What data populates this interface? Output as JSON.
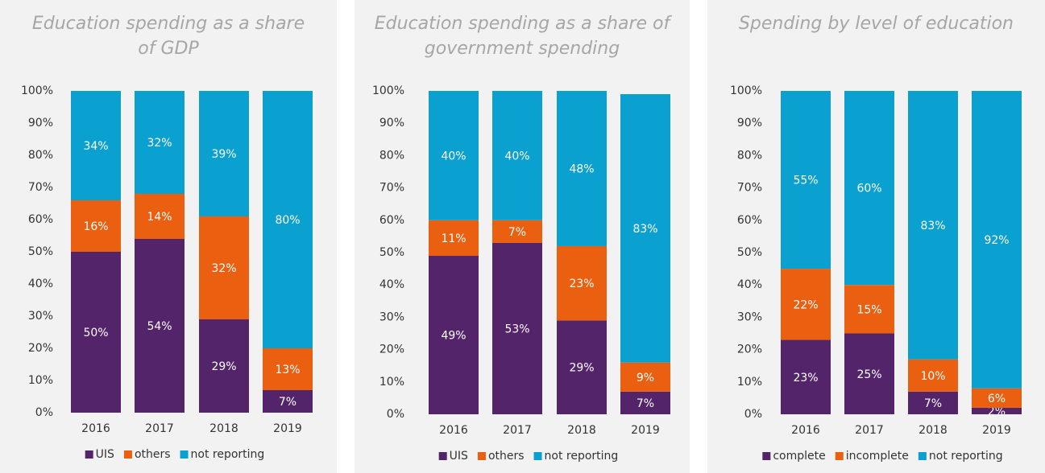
{
  "chart_data": [
    {
      "type": "bar",
      "stacked": true,
      "title": "Education spending as a share of GDP",
      "categories": [
        "2016",
        "2017",
        "2018",
        "2019"
      ],
      "series": [
        {
          "name": "UIS",
          "color": "#54246b",
          "values": [
            50,
            54,
            29,
            7
          ],
          "value_labels": [
            "50%",
            "54%",
            "29%",
            "7%"
          ]
        },
        {
          "name": "others",
          "color": "#ea6010",
          "values": [
            16,
            14,
            32,
            13
          ],
          "value_labels": [
            "16%",
            "14%",
            "32%",
            "13%"
          ]
        },
        {
          "name": "not reporting",
          "color": "#0aa0cf",
          "values": [
            34,
            32,
            39,
            80
          ],
          "value_labels": [
            "34%",
            "32%",
            "39%",
            "80%"
          ]
        }
      ],
      "ylim": [
        0,
        100
      ],
      "yticks": [
        {
          "value": 0,
          "label": "0%"
        },
        {
          "value": 10,
          "label": "10%"
        },
        {
          "value": 20,
          "label": "20%"
        },
        {
          "value": 30,
          "label": "30%"
        },
        {
          "value": 40,
          "label": "40%"
        },
        {
          "value": 50,
          "label": "50%"
        },
        {
          "value": 60,
          "label": "60%"
        },
        {
          "value": 70,
          "label": "70%"
        },
        {
          "value": 80,
          "label": "80%"
        },
        {
          "value": 90,
          "label": "90%"
        },
        {
          "value": 100,
          "label": "100%"
        }
      ],
      "legend": "bottom"
    },
    {
      "type": "bar",
      "stacked": true,
      "title": "Education spending as a share of government spending",
      "categories": [
        "2016",
        "2017",
        "2018",
        "2019"
      ],
      "series": [
        {
          "name": "UIS",
          "color": "#54246b",
          "values": [
            49,
            53,
            29,
            7
          ],
          "value_labels": [
            "49%",
            "53%",
            "29%",
            "7%"
          ]
        },
        {
          "name": "others",
          "color": "#ea6010",
          "values": [
            11,
            7,
            23,
            9
          ],
          "value_labels": [
            "11%",
            "7%",
            "23%",
            "9%"
          ]
        },
        {
          "name": "not reporting",
          "color": "#0aa0cf",
          "values": [
            40,
            40,
            48,
            83
          ],
          "value_labels": [
            "40%",
            "40%",
            "48%",
            "83%"
          ]
        }
      ],
      "ylim": [
        0,
        100
      ],
      "yticks": [
        {
          "value": 0,
          "label": "0%"
        },
        {
          "value": 10,
          "label": "10%"
        },
        {
          "value": 20,
          "label": "20%"
        },
        {
          "value": 30,
          "label": "30%"
        },
        {
          "value": 40,
          "label": "40%"
        },
        {
          "value": 50,
          "label": "50%"
        },
        {
          "value": 60,
          "label": "60%"
        },
        {
          "value": 70,
          "label": "70%"
        },
        {
          "value": 80,
          "label": "80%"
        },
        {
          "value": 90,
          "label": "90%"
        },
        {
          "value": 100,
          "label": "100%"
        }
      ],
      "legend": "bottom"
    },
    {
      "type": "bar",
      "stacked": true,
      "title": "Spending by level of education",
      "categories": [
        "2016",
        "2017",
        "2018",
        "2019"
      ],
      "series": [
        {
          "name": "complete",
          "color": "#54246b",
          "values": [
            23,
            25,
            7,
            2
          ],
          "value_labels": [
            "23%",
            "25%",
            "7%",
            "2%"
          ]
        },
        {
          "name": "incomplete",
          "color": "#ea6010",
          "values": [
            22,
            15,
            10,
            6
          ],
          "value_labels": [
            "22%",
            "15%",
            "10%",
            "6%"
          ]
        },
        {
          "name": "not reporting",
          "color": "#0aa0cf",
          "values": [
            55,
            60,
            83,
            92
          ],
          "value_labels": [
            "55%",
            "60%",
            "83%",
            "92%"
          ]
        }
      ],
      "ylim": [
        0,
        100
      ],
      "yticks": [
        {
          "value": 0,
          "label": "0%"
        },
        {
          "value": 10,
          "label": "10%"
        },
        {
          "value": 20,
          "label": "20%"
        },
        {
          "value": 30,
          "label": "30%"
        },
        {
          "value": 40,
          "label": "40%"
        },
        {
          "value": 50,
          "label": "50%"
        },
        {
          "value": 60,
          "label": "60%"
        },
        {
          "value": 70,
          "label": "70%"
        },
        {
          "value": 80,
          "label": "80%"
        },
        {
          "value": 90,
          "label": "90%"
        },
        {
          "value": 100,
          "label": "100%"
        }
      ],
      "legend": "bottom"
    }
  ]
}
